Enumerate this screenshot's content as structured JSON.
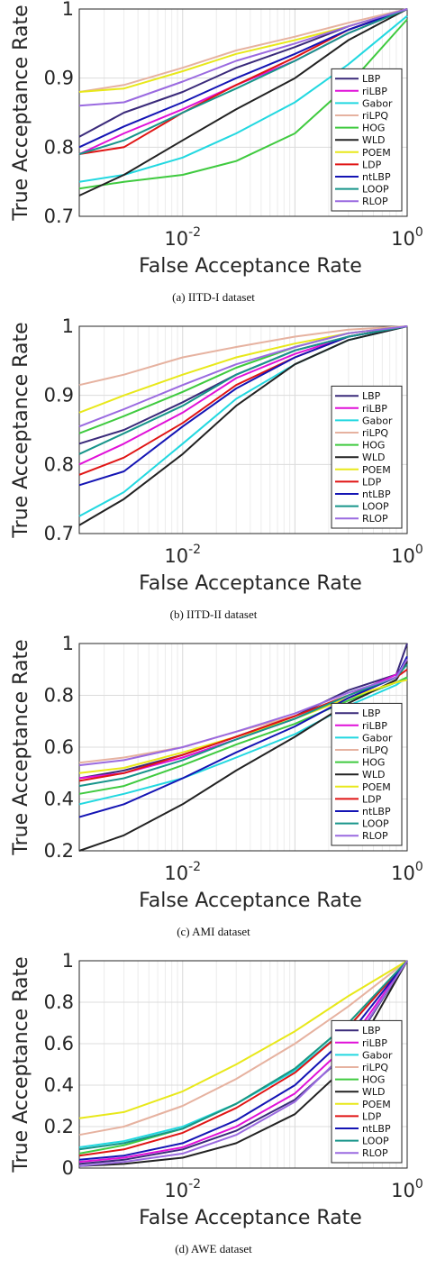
{
  "series_colors": {
    "LBP": "#3a2a7a",
    "riLBP": "#e010d8",
    "Gabor": "#22d8e0",
    "riLPQ": "#e6b2a0",
    "HOG": "#3fca3f",
    "WLD": "#222222",
    "POEM": "#e8e81a",
    "LDP": "#e01414",
    "ntLBP": "#1414b4",
    "LOOP": "#17958a",
    "RLOP": "#9a6ae0"
  },
  "chart_data": [
    {
      "type": "line",
      "caption": "(a)  IITD-I dataset",
      "xlabel": "False Acceptance Rate",
      "ylabel": "True Acceptance Rate",
      "xscale": "log",
      "xlim": [
        0.0012,
        1
      ],
      "ylim": [
        0.7,
        1
      ],
      "xticks": [
        {
          "v": 0.01,
          "base": "10",
          "exp": "-2"
        },
        {
          "v": 1,
          "base": "10",
          "exp": "0"
        }
      ],
      "yticks": [
        {
          "v": 0.7,
          "label": "0.7"
        },
        {
          "v": 0.8,
          "label": "0.8"
        },
        {
          "v": 0.9,
          "label": "0.9"
        },
        {
          "v": 1,
          "label": "1"
        }
      ],
      "grid": true,
      "legend": "right",
      "x": [
        0.0012,
        0.003,
        0.01,
        0.03,
        0.1,
        0.3,
        1
      ],
      "series": [
        {
          "name": "LBP",
          "values": [
            0.815,
            0.85,
            0.88,
            0.915,
            0.945,
            0.975,
            1.0
          ]
        },
        {
          "name": "riLBP",
          "values": [
            0.79,
            0.82,
            0.855,
            0.89,
            0.925,
            0.965,
            1.0
          ]
        },
        {
          "name": "Gabor",
          "values": [
            0.75,
            0.76,
            0.785,
            0.82,
            0.865,
            0.92,
            0.99
          ]
        },
        {
          "name": "riLPQ",
          "values": [
            0.88,
            0.89,
            0.915,
            0.94,
            0.96,
            0.98,
            1.0
          ]
        },
        {
          "name": "HOG",
          "values": [
            0.74,
            0.75,
            0.76,
            0.78,
            0.82,
            0.89,
            0.985
          ]
        },
        {
          "name": "WLD",
          "values": [
            0.73,
            0.76,
            0.81,
            0.855,
            0.9,
            0.955,
            1.0
          ]
        },
        {
          "name": "POEM",
          "values": [
            0.88,
            0.885,
            0.91,
            0.935,
            0.955,
            0.975,
            1.0
          ]
        },
        {
          "name": "LDP",
          "values": [
            0.79,
            0.8,
            0.85,
            0.89,
            0.93,
            0.97,
            1.0
          ]
        },
        {
          "name": "ntLBP",
          "values": [
            0.8,
            0.83,
            0.865,
            0.9,
            0.935,
            0.97,
            1.0
          ]
        },
        {
          "name": "LOOP",
          "values": [
            0.79,
            0.81,
            0.85,
            0.885,
            0.925,
            0.965,
            1.0
          ]
        },
        {
          "name": "RLOP",
          "values": [
            0.86,
            0.865,
            0.895,
            0.925,
            0.95,
            0.975,
            1.0
          ]
        }
      ]
    },
    {
      "type": "line",
      "caption": "(b)  IITD-II dataset",
      "xlabel": "False Acceptance Rate",
      "ylabel": "True Acceptance Rate",
      "xscale": "log",
      "xlim": [
        0.0012,
        1
      ],
      "ylim": [
        0.7,
        1
      ],
      "xticks": [
        {
          "v": 0.01,
          "base": "10",
          "exp": "-2"
        },
        {
          "v": 1,
          "base": "10",
          "exp": "0"
        }
      ],
      "yticks": [
        {
          "v": 0.7,
          "label": "0.7"
        },
        {
          "v": 0.8,
          "label": "0.8"
        },
        {
          "v": 0.9,
          "label": "0.9"
        },
        {
          "v": 1,
          "label": "1"
        }
      ],
      "grid": true,
      "legend": "bottom-right",
      "x": [
        0.0012,
        0.003,
        0.01,
        0.03,
        0.1,
        0.3,
        1
      ],
      "series": [
        {
          "name": "LBP",
          "values": [
            0.83,
            0.85,
            0.89,
            0.93,
            0.965,
            0.985,
            1.0
          ]
        },
        {
          "name": "riLBP",
          "values": [
            0.8,
            0.83,
            0.875,
            0.925,
            0.96,
            0.985,
            1.0
          ]
        },
        {
          "name": "Gabor",
          "values": [
            0.725,
            0.76,
            0.83,
            0.895,
            0.945,
            0.98,
            1.0
          ]
        },
        {
          "name": "riLPQ",
          "values": [
            0.915,
            0.93,
            0.955,
            0.97,
            0.985,
            0.995,
            1.0
          ]
        },
        {
          "name": "HOG",
          "values": [
            0.845,
            0.87,
            0.905,
            0.94,
            0.97,
            0.99,
            1.0
          ]
        },
        {
          "name": "WLD",
          "values": [
            0.712,
            0.75,
            0.815,
            0.885,
            0.945,
            0.98,
            1.0
          ]
        },
        {
          "name": "POEM",
          "values": [
            0.875,
            0.9,
            0.93,
            0.955,
            0.975,
            0.99,
            1.0
          ]
        },
        {
          "name": "LDP",
          "values": [
            0.785,
            0.81,
            0.86,
            0.915,
            0.955,
            0.985,
            1.0
          ]
        },
        {
          "name": "ntLBP",
          "values": [
            0.77,
            0.79,
            0.855,
            0.91,
            0.955,
            0.985,
            1.0
          ]
        },
        {
          "name": "LOOP",
          "values": [
            0.815,
            0.845,
            0.885,
            0.93,
            0.965,
            0.985,
            1.0
          ]
        },
        {
          "name": "RLOP",
          "values": [
            0.855,
            0.88,
            0.915,
            0.945,
            0.97,
            0.99,
            1.0
          ]
        }
      ]
    },
    {
      "type": "line",
      "caption": "(c)  AMI dataset",
      "xlabel": "False Acceptance Rate",
      "ylabel": "True Acceptance Rate",
      "xscale": "log",
      "xlim": [
        0.0012,
        1
      ],
      "ylim": [
        0.2,
        1
      ],
      "xticks": [
        {
          "v": 0.01,
          "base": "10",
          "exp": "-2"
        },
        {
          "v": 1,
          "base": "10",
          "exp": "0"
        }
      ],
      "yticks": [
        {
          "v": 0.2,
          "label": "0.2"
        },
        {
          "v": 0.4,
          "label": "0.4"
        },
        {
          "v": 0.6,
          "label": "0.6"
        },
        {
          "v": 0.8,
          "label": "0.8"
        },
        {
          "v": 1,
          "label": "1"
        }
      ],
      "grid": true,
      "legend": "bottom-right",
      "x": [
        0.0012,
        0.003,
        0.01,
        0.03,
        0.1,
        0.3,
        0.8,
        1
      ],
      "series": [
        {
          "name": "LBP",
          "values": [
            0.48,
            0.51,
            0.57,
            0.64,
            0.72,
            0.82,
            0.88,
            1.0
          ]
        },
        {
          "name": "riLBP",
          "values": [
            0.48,
            0.5,
            0.56,
            0.63,
            0.71,
            0.8,
            0.88,
            0.93
          ]
        },
        {
          "name": "Gabor",
          "values": [
            0.38,
            0.42,
            0.48,
            0.56,
            0.65,
            0.76,
            0.84,
            0.87
          ]
        },
        {
          "name": "riLPQ",
          "values": [
            0.54,
            0.56,
            0.6,
            0.66,
            0.72,
            0.79,
            0.85,
            0.86
          ]
        },
        {
          "name": "HOG",
          "values": [
            0.42,
            0.45,
            0.53,
            0.61,
            0.69,
            0.78,
            0.85,
            0.87
          ]
        },
        {
          "name": "WLD",
          "values": [
            0.2,
            0.26,
            0.38,
            0.51,
            0.64,
            0.77,
            0.86,
            0.93
          ]
        },
        {
          "name": "POEM",
          "values": [
            0.5,
            0.52,
            0.58,
            0.64,
            0.71,
            0.79,
            0.85,
            0.86
          ]
        },
        {
          "name": "LDP",
          "values": [
            0.47,
            0.5,
            0.57,
            0.64,
            0.72,
            0.8,
            0.87,
            0.9
          ]
        },
        {
          "name": "ntLBP",
          "values": [
            0.33,
            0.38,
            0.48,
            0.58,
            0.68,
            0.79,
            0.87,
            0.95
          ]
        },
        {
          "name": "LOOP",
          "values": [
            0.45,
            0.48,
            0.55,
            0.63,
            0.71,
            0.8,
            0.87,
            0.92
          ]
        },
        {
          "name": "RLOP",
          "values": [
            0.53,
            0.55,
            0.6,
            0.66,
            0.73,
            0.81,
            0.87,
            0.94
          ]
        }
      ]
    },
    {
      "type": "line",
      "caption": "(d)  AWE dataset",
      "xlabel": "False Acceptance Rate",
      "ylabel": "True Acceptance Rate",
      "xscale": "log",
      "xlim": [
        0.0012,
        1
      ],
      "ylim": [
        0,
        1
      ],
      "xticks": [
        {
          "v": 0.01,
          "base": "10",
          "exp": "-2"
        },
        {
          "v": 1,
          "base": "10",
          "exp": "0"
        }
      ],
      "yticks": [
        {
          "v": 0,
          "label": "0"
        },
        {
          "v": 0.2,
          "label": "0.2"
        },
        {
          "v": 0.4,
          "label": "0.4"
        },
        {
          "v": 0.6,
          "label": "0.6"
        },
        {
          "v": 0.8,
          "label": "0.8"
        },
        {
          "v": 1,
          "label": "1"
        }
      ],
      "grid": true,
      "legend": "bottom-right",
      "x": [
        0.0012,
        0.003,
        0.01,
        0.03,
        0.1,
        0.3,
        1
      ],
      "series": [
        {
          "name": "LBP",
          "values": [
            0.02,
            0.04,
            0.09,
            0.18,
            0.33,
            0.56,
            1.0
          ]
        },
        {
          "name": "riLBP",
          "values": [
            0.03,
            0.05,
            0.1,
            0.2,
            0.36,
            0.6,
            1.0
          ]
        },
        {
          "name": "Gabor",
          "values": [
            0.1,
            0.13,
            0.2,
            0.31,
            0.47,
            0.68,
            1.0
          ]
        },
        {
          "name": "riLPQ",
          "values": [
            0.16,
            0.2,
            0.3,
            0.43,
            0.6,
            0.78,
            1.0
          ]
        },
        {
          "name": "HOG",
          "values": [
            0.07,
            0.11,
            0.19,
            0.31,
            0.48,
            0.7,
            1.0
          ]
        },
        {
          "name": "WLD",
          "values": [
            0.01,
            0.02,
            0.05,
            0.12,
            0.26,
            0.5,
            1.0
          ]
        },
        {
          "name": "POEM",
          "values": [
            0.24,
            0.27,
            0.37,
            0.5,
            0.66,
            0.83,
            1.0
          ]
        },
        {
          "name": "LDP",
          "values": [
            0.06,
            0.09,
            0.17,
            0.29,
            0.46,
            0.68,
            1.0
          ]
        },
        {
          "name": "ntLBP",
          "values": [
            0.04,
            0.06,
            0.12,
            0.23,
            0.4,
            0.64,
            1.0
          ]
        },
        {
          "name": "LOOP",
          "values": [
            0.09,
            0.12,
            0.19,
            0.31,
            0.48,
            0.7,
            1.0
          ]
        },
        {
          "name": "RLOP",
          "values": [
            0.01,
            0.03,
            0.07,
            0.16,
            0.32,
            0.57,
            1.0
          ]
        }
      ]
    }
  ]
}
